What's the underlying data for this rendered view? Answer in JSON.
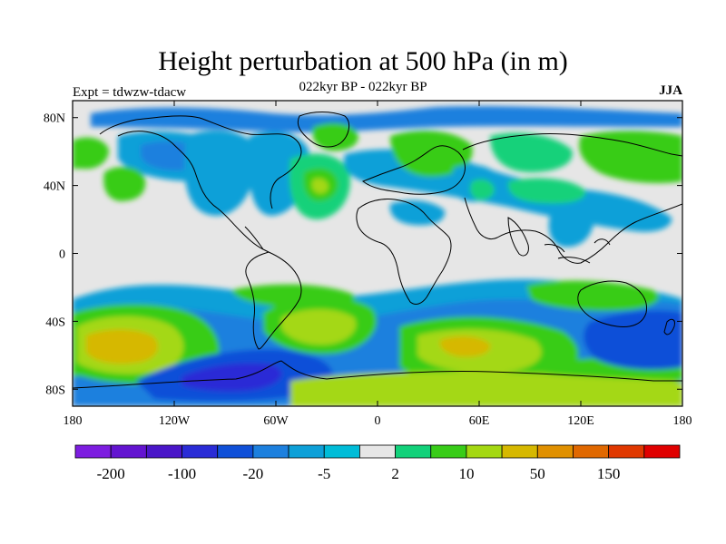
{
  "title": "Height perturbation at 500 hPa (in m)",
  "subtitle": "022kyr BP - 022kyr BP",
  "experiment": "Expt = tdwzw-tdacw",
  "season": "JJA",
  "map": {
    "lon_range": [
      -180,
      180
    ],
    "lat_range": [
      -90,
      90
    ],
    "lon_ticks": [
      {
        "value": -180,
        "label": "180"
      },
      {
        "value": -120,
        "label": "120W"
      },
      {
        "value": -60,
        "label": "60W"
      },
      {
        "value": 0,
        "label": "0"
      },
      {
        "value": 60,
        "label": "60E"
      },
      {
        "value": 120,
        "label": "120E"
      },
      {
        "value": 180,
        "label": "180"
      }
    ],
    "lat_ticks": [
      {
        "value": 80,
        "label": "80N"
      },
      {
        "value": 40,
        "label": "40N"
      },
      {
        "value": 0,
        "label": "0"
      },
      {
        "value": -40,
        "label": "40S"
      },
      {
        "value": -80,
        "label": "80S"
      }
    ],
    "background_color": "#e6e6e6",
    "features": [
      {
        "name": "south-pacific-positive-high",
        "lon": -140,
        "lat": -57,
        "level": 50
      },
      {
        "name": "antarctic-negative-low",
        "lon": -75,
        "lat": -63,
        "level": -100
      },
      {
        "name": "south-indian-positive-high",
        "lon": 45,
        "lat": -52,
        "level": 50
      },
      {
        "name": "australia-negative-low",
        "lon": 150,
        "lat": -48,
        "level": -100
      },
      {
        "name": "south-atlantic-positive",
        "lon": -35,
        "lat": -40,
        "level": 10
      },
      {
        "name": "north-atlantic-positive",
        "lon": -35,
        "lat": 40,
        "level": 10
      },
      {
        "name": "north-pacific-positive",
        "lon": -145,
        "lat": 36,
        "level": 2
      },
      {
        "name": "greenland-positive",
        "lon": -30,
        "lat": 72,
        "level": 2
      },
      {
        "name": "europe-positive",
        "lon": 20,
        "lat": 65,
        "level": 10
      }
    ]
  },
  "colorbar": {
    "colors": [
      "#7d1de0",
      "#6314d0",
      "#4a16c8",
      "#2a2cd6",
      "#1050d8",
      "#1d80de",
      "#0ea0d8",
      "#00bcd8",
      "#e6e6e6",
      "#12d17a",
      "#38cc18",
      "#a4d812",
      "#d6b800",
      "#e09000",
      "#e06800",
      "#e03800",
      "#e00000"
    ],
    "labels": [
      {
        "boundary": 1,
        "text": "-200"
      },
      {
        "boundary": 3,
        "text": "-100"
      },
      {
        "boundary": 5,
        "text": "-20"
      },
      {
        "boundary": 7,
        "text": "-5"
      },
      {
        "boundary": 9,
        "text": "2"
      },
      {
        "boundary": 11,
        "text": "10"
      },
      {
        "boundary": 13,
        "text": "50"
      },
      {
        "boundary": 15,
        "text": "150"
      }
    ]
  }
}
